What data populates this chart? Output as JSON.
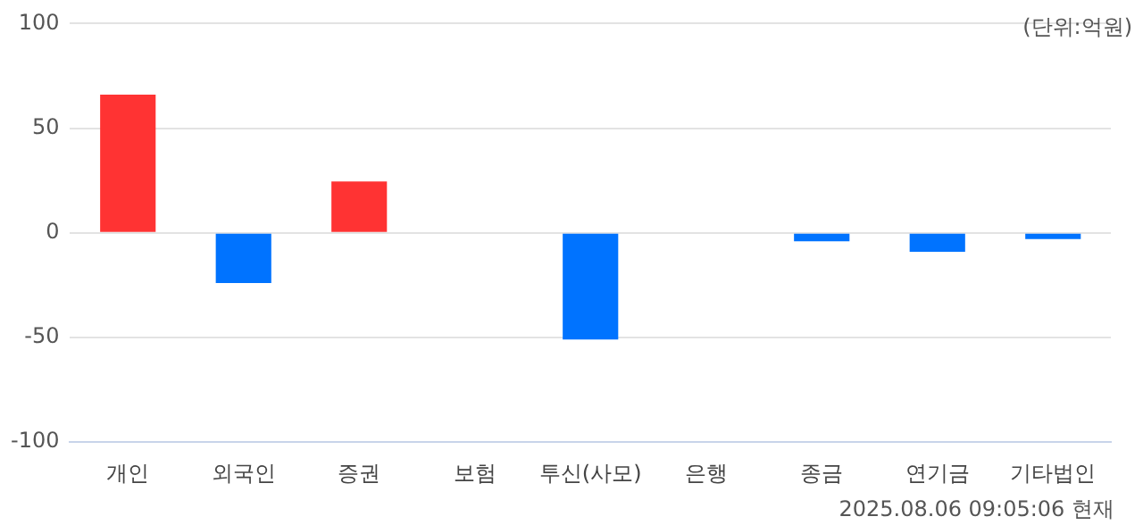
{
  "chart_data": {
    "type": "bar",
    "categories": [
      "개인",
      "외국인",
      "증권",
      "보험",
      "투신(사모)",
      "은행",
      "종금",
      "연기금",
      "기타법인"
    ],
    "values": [
      66,
      -24,
      24.5,
      0,
      -51,
      0,
      -4,
      -9,
      -3
    ],
    "colors": [
      "#ff3333",
      "#0073ff",
      "#ff3333",
      "#0073ff",
      "#0073ff",
      "#0073ff",
      "#0073ff",
      "#0073ff",
      "#0073ff"
    ],
    "ylim": [
      -100,
      100
    ],
    "yticks": [
      -100,
      -50,
      0,
      50,
      100
    ],
    "grid": "y",
    "legend": false,
    "annotations": [
      "(단위:억원)",
      "2025.08.06 09:05:06 현재"
    ]
  }
}
